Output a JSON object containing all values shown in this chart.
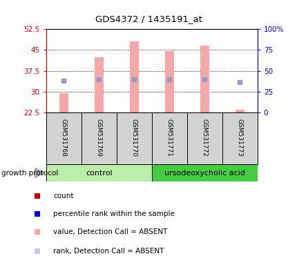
{
  "title": "GDS4372 / 1435191_at",
  "samples": [
    "GSM531768",
    "GSM531769",
    "GSM531770",
    "GSM531771",
    "GSM531772",
    "GSM531773"
  ],
  "bar_bottom": 22.5,
  "bar_tops": [
    29.5,
    42.5,
    48.0,
    44.5,
    46.5,
    23.5
  ],
  "blue_square_vals": [
    34.0,
    34.5,
    34.5,
    34.5,
    34.5,
    33.5
  ],
  "ylim_left": [
    22.5,
    52.5
  ],
  "ylim_right": [
    0,
    100
  ],
  "yticks_left": [
    22.5,
    30,
    37.5,
    45,
    52.5
  ],
  "yticks_right": [
    0,
    25,
    50,
    75,
    100
  ],
  "ytick_labels_left": [
    "22.5",
    "30",
    "37.5",
    "45",
    "52.5"
  ],
  "ytick_labels_right": [
    "0",
    "25",
    "50",
    "75",
    "100%"
  ],
  "bar_color": "#f4a9a8",
  "blue_sq_color": "#9999cc",
  "control_color": "#bbeeaa",
  "treatment_color": "#44cc44",
  "sample_box_color": "#d3d3d3",
  "left_axis_color": "#cc0000",
  "right_axis_color": "#0000cc",
  "background_color": "#ffffff",
  "plot_bg_color": "#ffffff",
  "growth_protocol_label": "growth protocol",
  "legend_items": [
    {
      "color": "#cc0000",
      "shape": "square",
      "label": "count"
    },
    {
      "color": "#0000cc",
      "shape": "square",
      "label": "percentile rank within the sample"
    },
    {
      "color": "#f4a9a8",
      "shape": "square",
      "label": "value, Detection Call = ABSENT"
    },
    {
      "color": "#c8c8e8",
      "shape": "square",
      "label": "rank, Detection Call = ABSENT"
    }
  ]
}
